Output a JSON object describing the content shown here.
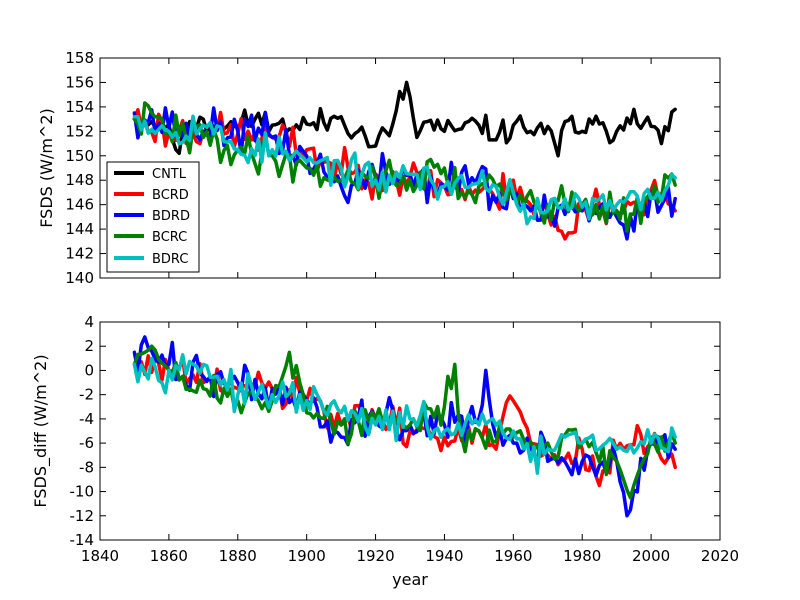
{
  "chart_data": [
    {
      "type": "line",
      "id": "top",
      "ylabel": "FSDS (W/m^2)",
      "xlabel": "",
      "xlim": [
        1840,
        2020
      ],
      "ylim": [
        140,
        158
      ],
      "xticks": [
        1840,
        1860,
        1880,
        1900,
        1920,
        1940,
        1960,
        1980,
        2000,
        2020
      ],
      "yticks": [
        140,
        142,
        144,
        146,
        148,
        150,
        152,
        154,
        156,
        158
      ],
      "grid": false,
      "legend": "lower-left",
      "x_start": 1850,
      "x_end": 2007,
      "series": [
        {
          "name": "CNTL",
          "color": "#000000",
          "anchors": [
            [
              1850,
              153.0
            ],
            [
              1855,
              152.8
            ],
            [
              1860,
              152.5
            ],
            [
              1863,
              150.2
            ],
            [
              1866,
              152.8
            ],
            [
              1870,
              153.0
            ],
            [
              1875,
              152.5
            ],
            [
              1880,
              152.3
            ],
            [
              1885,
              153.0
            ],
            [
              1890,
              152.5
            ],
            [
              1895,
              152.2
            ],
            [
              1900,
              152.6
            ],
            [
              1905,
              152.7
            ],
            [
              1910,
              153.2
            ],
            [
              1915,
              152.0
            ],
            [
              1920,
              150.8
            ],
            [
              1925,
              152.6
            ],
            [
              1929,
              156.0
            ],
            [
              1932,
              151.5
            ],
            [
              1935,
              152.8
            ],
            [
              1940,
              152.0
            ],
            [
              1945,
              152.2
            ],
            [
              1950,
              152.5
            ],
            [
              1955,
              151.3
            ],
            [
              1960,
              152.5
            ],
            [
              1965,
              152.0
            ],
            [
              1970,
              152.4
            ],
            [
              1973,
              150.0
            ],
            [
              1975,
              152.8
            ],
            [
              1980,
              152.0
            ],
            [
              1985,
              152.6
            ],
            [
              1990,
              152.0
            ],
            [
              1995,
              153.8
            ],
            [
              2000,
              152.4
            ],
            [
              2003,
              151.0
            ],
            [
              2007,
              153.8
            ]
          ],
          "noise": 0.9,
          "seed": 11
        },
        {
          "name": "BCRD",
          "color": "#ff0000",
          "anchors": [
            [
              1850,
              153.0
            ],
            [
              1860,
              152.0
            ],
            [
              1870,
              152.0
            ],
            [
              1880,
              151.8
            ],
            [
              1890,
              151.5
            ],
            [
              1900,
              150.5
            ],
            [
              1910,
              148.5
            ],
            [
              1920,
              148.5
            ],
            [
              1930,
              148.3
            ],
            [
              1940,
              147.5
            ],
            [
              1950,
              147.0
            ],
            [
              1955,
              146.3
            ],
            [
              1960,
              148.0
            ],
            [
              1965,
              146.0
            ],
            [
              1970,
              145.2
            ],
            [
              1975,
              143.2
            ],
            [
              1980,
              145.8
            ],
            [
              1985,
              146.0
            ],
            [
              1990,
              145.5
            ],
            [
              1995,
              146.2
            ],
            [
              2000,
              147.2
            ],
            [
              2007,
              145.5
            ]
          ],
          "noise": 1.2,
          "seed": 23
        },
        {
          "name": "BDRD",
          "color": "#0000ff",
          "anchors": [
            [
              1850,
              153.5
            ],
            [
              1860,
              152.3
            ],
            [
              1870,
              152.0
            ],
            [
              1880,
              152.0
            ],
            [
              1890,
              151.5
            ],
            [
              1900,
              150.0
            ],
            [
              1910,
              147.5
            ],
            [
              1920,
              148.3
            ],
            [
              1930,
              148.5
            ],
            [
              1940,
              147.5
            ],
            [
              1950,
              148.5
            ],
            [
              1955,
              146.2
            ],
            [
              1960,
              146.5
            ],
            [
              1965,
              145.5
            ],
            [
              1970,
              145.0
            ],
            [
              1975,
              145.2
            ],
            [
              1980,
              145.5
            ],
            [
              1985,
              145.8
            ],
            [
              1990,
              145.0
            ],
            [
              1993,
              143.2
            ],
            [
              2000,
              147.0
            ],
            [
              2007,
              146.5
            ]
          ],
          "noise": 1.3,
          "seed": 37
        },
        {
          "name": "BCRC",
          "color": "#008000",
          "anchors": [
            [
              1850,
              153.0
            ],
            [
              1855,
              153.5
            ],
            [
              1860,
              152.0
            ],
            [
              1870,
              151.5
            ],
            [
              1880,
              150.5
            ],
            [
              1890,
              150.0
            ],
            [
              1900,
              149.0
            ],
            [
              1910,
              148.0
            ],
            [
              1920,
              148.2
            ],
            [
              1930,
              148.0
            ],
            [
              1940,
              149.0
            ],
            [
              1945,
              147.0
            ],
            [
              1950,
              147.5
            ],
            [
              1960,
              146.8
            ],
            [
              1970,
              146.0
            ],
            [
              1980,
              146.0
            ],
            [
              1990,
              145.5
            ],
            [
              1995,
              145.2
            ],
            [
              2000,
              146.5
            ],
            [
              2007,
              147.6
            ]
          ],
          "noise": 1.2,
          "seed": 41
        },
        {
          "name": "BDRC",
          "color": "#00bfbf",
          "anchors": [
            [
              1850,
              153.2
            ],
            [
              1860,
              152.0
            ],
            [
              1870,
              152.5
            ],
            [
              1880,
              150.5
            ],
            [
              1890,
              150.5
            ],
            [
              1900,
              149.5
            ],
            [
              1910,
              149.0
            ],
            [
              1920,
              148.0
            ],
            [
              1930,
              148.5
            ],
            [
              1940,
              147.5
            ],
            [
              1950,
              147.8
            ],
            [
              1955,
              147.5
            ],
            [
              1960,
              147.0
            ],
            [
              1965,
              145.0
            ],
            [
              1970,
              145.5
            ],
            [
              1975,
              146.5
            ],
            [
              1980,
              145.8
            ],
            [
              1990,
              146.0
            ],
            [
              2000,
              146.5
            ],
            [
              2007,
              148.2
            ]
          ],
          "noise": 1.0,
          "seed": 53
        }
      ]
    },
    {
      "type": "line",
      "id": "bottom",
      "ylabel": "FSDS_diff (W/m^2)",
      "xlabel": "year",
      "xlim": [
        1840,
        2020
      ],
      "ylim": [
        -14,
        4
      ],
      "xticks": [
        1840,
        1860,
        1880,
        1900,
        1920,
        1940,
        1960,
        1980,
        2000,
        2020
      ],
      "yticks": [
        -14,
        -12,
        -10,
        -8,
        -6,
        -4,
        -2,
        0,
        2,
        4
      ],
      "grid": false,
      "x_start": 1850,
      "x_end": 2007,
      "series": [
        {
          "name": "BCRD",
          "color": "#ff0000",
          "anchors": [
            [
              1850,
              0.5
            ],
            [
              1860,
              0.0
            ],
            [
              1870,
              -1.0
            ],
            [
              1880,
              -1.5
            ],
            [
              1890,
              -1.5
            ],
            [
              1900,
              -2.5
            ],
            [
              1910,
              -4.5
            ],
            [
              1920,
              -4.0
            ],
            [
              1930,
              -5.0
            ],
            [
              1940,
              -5.5
            ],
            [
              1950,
              -5.0
            ],
            [
              1955,
              -6.5
            ],
            [
              1960,
              -2.5
            ],
            [
              1965,
              -6.0
            ],
            [
              1970,
              -7.0
            ],
            [
              1980,
              -6.5
            ],
            [
              1985,
              -9.5
            ],
            [
              1990,
              -6.5
            ],
            [
              2000,
              -6.0
            ],
            [
              2007,
              -8.0
            ]
          ],
          "noise": 1.2,
          "seed": 61
        },
        {
          "name": "BDRD",
          "color": "#0000ff",
          "anchors": [
            [
              1850,
              1.5
            ],
            [
              1860,
              0.5
            ],
            [
              1870,
              -0.5
            ],
            [
              1880,
              -1.0
            ],
            [
              1890,
              -1.5
            ],
            [
              1900,
              -2.5
            ],
            [
              1910,
              -5.5
            ],
            [
              1920,
              -4.0
            ],
            [
              1930,
              -4.5
            ],
            [
              1940,
              -4.5
            ],
            [
              1950,
              -4.0
            ],
            [
              1952,
              0.0
            ],
            [
              1955,
              -5.5
            ],
            [
              1960,
              -6.0
            ],
            [
              1965,
              -6.5
            ],
            [
              1970,
              -7.5
            ],
            [
              1980,
              -7.5
            ],
            [
              1990,
              -7.5
            ],
            [
              1993,
              -12.0
            ],
            [
              2000,
              -6.0
            ],
            [
              2007,
              -6.5
            ]
          ],
          "noise": 1.3,
          "seed": 73
        },
        {
          "name": "BCRC",
          "color": "#008000",
          "anchors": [
            [
              1850,
              0.5
            ],
            [
              1855,
              2.0
            ],
            [
              1860,
              0.0
            ],
            [
              1870,
              -1.5
            ],
            [
              1880,
              -2.5
            ],
            [
              1890,
              -2.5
            ],
            [
              1895,
              1.5
            ],
            [
              1900,
              -3.5
            ],
            [
              1910,
              -4.5
            ],
            [
              1920,
              -4.0
            ],
            [
              1930,
              -4.5
            ],
            [
              1940,
              -3.0
            ],
            [
              1943,
              0.5
            ],
            [
              1945,
              -5.5
            ],
            [
              1950,
              -5.0
            ],
            [
              1960,
              -5.5
            ],
            [
              1970,
              -6.0
            ],
            [
              1980,
              -6.0
            ],
            [
              1990,
              -7.5
            ],
            [
              1994,
              -10.5
            ],
            [
              2000,
              -5.5
            ],
            [
              2007,
              -6.0
            ]
          ],
          "noise": 1.2,
          "seed": 89
        },
        {
          "name": "BDRC",
          "color": "#00bfbf",
          "anchors": [
            [
              1850,
              0.5
            ],
            [
              1860,
              0.0
            ],
            [
              1870,
              0.5
            ],
            [
              1880,
              -2.0
            ],
            [
              1890,
              -2.0
            ],
            [
              1900,
              -2.5
            ],
            [
              1910,
              -3.5
            ],
            [
              1920,
              -4.5
            ],
            [
              1930,
              -4.0
            ],
            [
              1940,
              -5.0
            ],
            [
              1950,
              -4.5
            ],
            [
              1960,
              -5.0
            ],
            [
              1965,
              -7.5
            ],
            [
              1970,
              -6.5
            ],
            [
              1975,
              -5.5
            ],
            [
              1980,
              -6.0
            ],
            [
              1990,
              -6.5
            ],
            [
              2000,
              -6.0
            ],
            [
              2007,
              -5.5
            ]
          ],
          "noise": 1.0,
          "seed": 97
        }
      ]
    }
  ]
}
